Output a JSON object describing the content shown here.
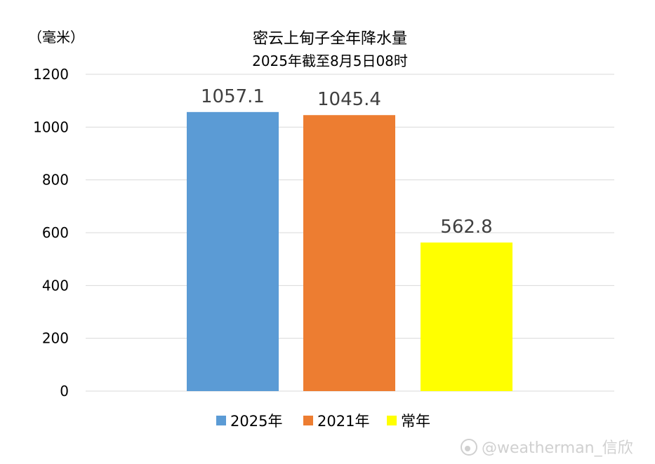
{
  "chart_data": {
    "type": "bar",
    "title": "密云上甸子全年降水量",
    "subtitle": "2025年截至8月5日08时",
    "ylabel": "（毫米）",
    "ylim": [
      0,
      1200
    ],
    "yticks": [
      0,
      200,
      400,
      600,
      800,
      1000,
      1200
    ],
    "grid": true,
    "legend_position": "bottom",
    "series": [
      {
        "name": "2025年",
        "value": 1057.1,
        "label": "1057.1",
        "color": "#5b9bd5"
      },
      {
        "name": "2021年",
        "value": 1045.4,
        "label": "1045.4",
        "color": "#ed7d31"
      },
      {
        "name": "常年",
        "value": 562.8,
        "label": "562.8",
        "color": "#ffff00"
      }
    ]
  },
  "watermark": "@weatherman_信欣"
}
